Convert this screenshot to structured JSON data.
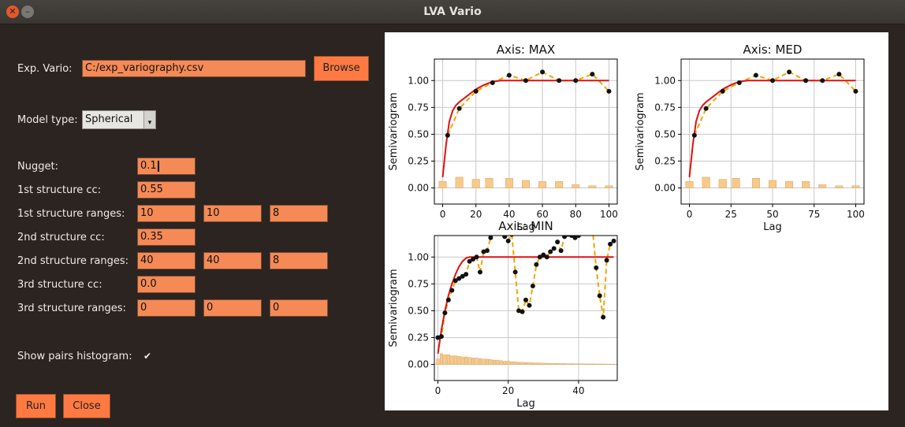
{
  "window": {
    "title": "LVA Vario"
  },
  "form": {
    "exp_vario_label": "Exp. Vario:",
    "exp_vario_value": "C:/exp_variography.csv",
    "browse_label": "Browse",
    "model_type_label": "Model type:",
    "model_type_value": "Spherical",
    "nugget_label": "Nugget:",
    "nugget_value": "0.1",
    "s1_cc_label": "1st structure cc:",
    "s1_cc_value": "0.55",
    "s1_ranges_label": "1st structure ranges:",
    "s1_ranges": [
      "10",
      "10",
      "8"
    ],
    "s2_cc_label": "2nd structure cc:",
    "s2_cc_value": "0.35",
    "s2_ranges_label": "2nd structure ranges:",
    "s2_ranges": [
      "40",
      "40",
      "8"
    ],
    "s3_cc_label": "3rd structure cc:",
    "s3_cc_value": "0.0",
    "s3_ranges_label": "3rd structure ranges:",
    "s3_ranges": [
      "0",
      "0",
      "0"
    ],
    "show_hist_label": "Show pairs histogram:",
    "show_hist_checked": true,
    "run_label": "Run",
    "close_label": "Close"
  },
  "chart_data": [
    {
      "type": "line",
      "title": "Axis: MAX",
      "xlabel": "Lag",
      "ylabel": "Semivariogram",
      "xlim": [
        -5,
        105
      ],
      "ylim": [
        -0.15,
        1.2
      ],
      "xticks": [
        0,
        20,
        40,
        60,
        80,
        100
      ],
      "yticks": [
        0.0,
        0.25,
        0.5,
        0.75,
        1.0
      ],
      "ytick_labels": [
        "0.00",
        "0.25",
        "0.50",
        "0.75",
        "1.00"
      ],
      "series": [
        {
          "type": "scatter",
          "x": [
            3,
            10,
            20,
            30,
            40,
            50,
            60,
            70,
            80,
            90,
            100
          ],
          "y": [
            0.49,
            0.74,
            0.9,
            0.98,
            1.05,
            1.0,
            1.08,
            1.0,
            1.0,
            1.06,
            0.9
          ]
        },
        {
          "type": "model",
          "x": [
            0,
            2,
            4,
            6,
            8,
            10,
            15,
            20,
            25,
            30,
            35,
            40,
            100
          ],
          "y": [
            0.1,
            0.4,
            0.62,
            0.72,
            0.77,
            0.8,
            0.86,
            0.92,
            0.96,
            0.99,
            1.0,
            1.0,
            1.0
          ]
        },
        {
          "type": "histogram",
          "x": [
            0,
            10,
            20,
            28,
            40,
            50,
            60,
            70,
            80,
            90,
            100
          ],
          "y": [
            0.06,
            0.1,
            0.08,
            0.09,
            0.09,
            0.07,
            0.06,
            0.06,
            0.03,
            0.02,
            0.02
          ]
        }
      ]
    },
    {
      "type": "line",
      "title": "Axis: MED",
      "xlabel": "Lag",
      "ylabel": "Semivariogram",
      "xlim": [
        -5,
        105
      ],
      "ylim": [
        -0.15,
        1.2
      ],
      "xticks": [
        0,
        25,
        50,
        75,
        100
      ],
      "yticks": [
        0.0,
        0.25,
        0.5,
        0.75,
        1.0
      ],
      "ytick_labels": [
        "0.00",
        "0.25",
        "0.50",
        "0.75",
        "1.00"
      ],
      "series": [
        {
          "type": "scatter",
          "x": [
            3,
            10,
            20,
            30,
            40,
            50,
            60,
            70,
            80,
            90,
            100
          ],
          "y": [
            0.49,
            0.74,
            0.9,
            0.98,
            1.05,
            1.0,
            1.08,
            1.0,
            1.0,
            1.06,
            0.9
          ]
        },
        {
          "type": "model",
          "x": [
            0,
            2,
            4,
            6,
            8,
            10,
            15,
            20,
            25,
            30,
            35,
            40,
            100
          ],
          "y": [
            0.1,
            0.4,
            0.62,
            0.72,
            0.77,
            0.8,
            0.86,
            0.92,
            0.96,
            0.99,
            1.0,
            1.0,
            1.0
          ]
        },
        {
          "type": "histogram",
          "x": [
            0,
            10,
            20,
            28,
            40,
            50,
            60,
            70,
            80,
            90,
            100
          ],
          "y": [
            0.06,
            0.1,
            0.08,
            0.09,
            0.09,
            0.07,
            0.06,
            0.06,
            0.03,
            0.02,
            0.02
          ]
        }
      ]
    },
    {
      "type": "line",
      "title": "Axis: MIN",
      "xlabel": "Lag",
      "ylabel": "Semivariogram",
      "xlim": [
        -1,
        51
      ],
      "ylim": [
        -0.15,
        1.2
      ],
      "xticks": [
        0,
        20,
        40
      ],
      "yticks": [
        0.0,
        0.25,
        0.5,
        0.75,
        1.0
      ],
      "ytick_labels": [
        "0.00",
        "0.25",
        "0.50",
        "0.75",
        "1.00"
      ],
      "series": [
        {
          "type": "scatter",
          "x": [
            0,
            1,
            2,
            3,
            4,
            5,
            6,
            7,
            8,
            9,
            10,
            11,
            12,
            13,
            14,
            15,
            16,
            17,
            18,
            19,
            20,
            21,
            22,
            23,
            24,
            25,
            26,
            27,
            28,
            29,
            30,
            31,
            32,
            33,
            34,
            35,
            36,
            37,
            38,
            39,
            40,
            41,
            42,
            43,
            44,
            45,
            46,
            47,
            48,
            49,
            50
          ],
          "y": [
            0.25,
            0.26,
            0.48,
            0.6,
            0.69,
            0.78,
            0.8,
            0.82,
            0.84,
            0.96,
            0.98,
            1.0,
            0.86,
            1.05,
            1.06,
            1.18,
            1.22,
            1.25,
            1.22,
            1.19,
            1.15,
            1.21,
            0.86,
            0.5,
            0.49,
            0.6,
            0.55,
            0.73,
            0.93,
            1.0,
            1.02,
            1.0,
            1.05,
            1.08,
            1.14,
            1.06,
            1.19,
            1.21,
            1.2,
            1.18,
            1.2,
            1.22,
            1.24,
            1.26,
            1.25,
            0.9,
            0.64,
            0.44,
            0.97,
            1.12,
            1.15
          ]
        },
        {
          "type": "model",
          "x": [
            0,
            1,
            2,
            3,
            4,
            5,
            6,
            7,
            8,
            9,
            10,
            50
          ],
          "y": [
            0.1,
            0.32,
            0.5,
            0.64,
            0.75,
            0.84,
            0.91,
            0.96,
            0.99,
            1.0,
            1.0,
            1.0
          ]
        },
        {
          "type": "histogram",
          "x": [
            0,
            1,
            2,
            3,
            4,
            5,
            6,
            7,
            8,
            9,
            10,
            11,
            12,
            13,
            14,
            15,
            16,
            17,
            18,
            19,
            20,
            21,
            22,
            23,
            24,
            25,
            26,
            27,
            28,
            29,
            30,
            31,
            32,
            33,
            34,
            35,
            36,
            37,
            38,
            39,
            40,
            41,
            42,
            43,
            44,
            45,
            46,
            47,
            48,
            49,
            50
          ],
          "y": [
            0.05,
            0.1,
            0.09,
            0.09,
            0.08,
            0.08,
            0.075,
            0.07,
            0.07,
            0.065,
            0.06,
            0.06,
            0.055,
            0.05,
            0.05,
            0.045,
            0.04,
            0.04,
            0.035,
            0.03,
            0.03,
            0.025,
            0.025,
            0.02,
            0.02,
            0.018,
            0.016,
            0.015,
            0.014,
            0.013,
            0.012,
            0.011,
            0.01,
            0.009,
            0.009,
            0.008,
            0.008,
            0.007,
            0.007,
            0.006,
            0.006,
            0.006,
            0.005,
            0.005,
            0.005,
            0.004,
            0.004,
            0.004,
            0.003,
            0.003,
            0.003
          ]
        }
      ]
    }
  ],
  "colors": {
    "window_bg": "#2b2420",
    "entry_bg": "#f58a56",
    "button_bg": "#ff7a43",
    "model_line": "#e01010",
    "exp_line": "#f0a500",
    "histogram": "#f7c98a",
    "grid": "#c8c8c8"
  }
}
